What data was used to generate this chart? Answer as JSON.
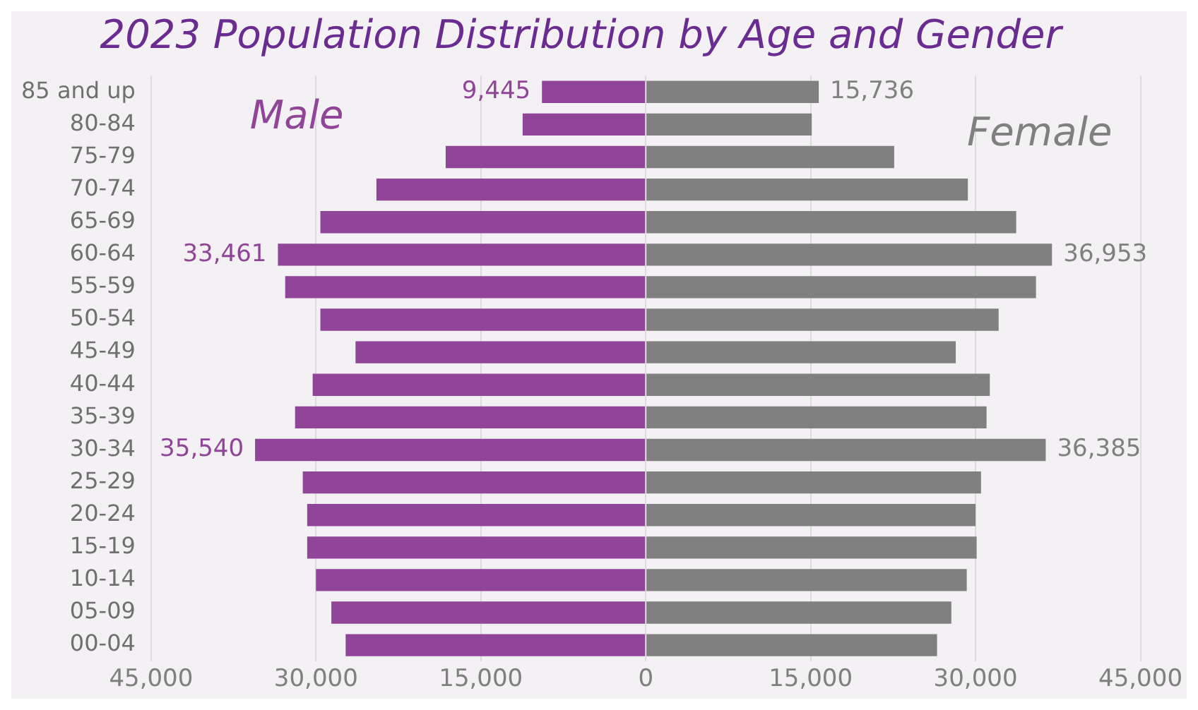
{
  "chart_data": {
    "type": "bar",
    "orientation": "horizontal",
    "title": "2023 Population Distribution by Age and Gender",
    "categories": [
      "85 and up",
      "80-84",
      "75-79",
      "70-74",
      "65-69",
      "60-64",
      "55-59",
      "50-54",
      "45-49",
      "40-44",
      "35-39",
      "30-34",
      "25-29",
      "20-24",
      "15-19",
      "10-14",
      "05-09",
      "00-04"
    ],
    "series": [
      {
        "name": "Male",
        "color": "#914599",
        "values": [
          9445,
          11200,
          18200,
          24500,
          29600,
          33461,
          32800,
          29600,
          26400,
          30300,
          31900,
          35540,
          31200,
          30800,
          30800,
          30000,
          28600,
          27300
        ],
        "base": [
          -9445,
          -11200,
          -18200,
          -24500,
          -29600,
          -33461,
          -32800,
          -29600,
          -26400,
          -30300,
          -31900,
          -35540,
          -31200,
          -30800,
          -30800,
          -30000,
          -28600,
          -27300
        ],
        "value_labels": [
          "9,445",
          null,
          null,
          null,
          null,
          "33,461",
          null,
          null,
          null,
          null,
          null,
          "35,540",
          null,
          null,
          null,
          null,
          null,
          null
        ]
      },
      {
        "name": "Female",
        "color": "#808080",
        "values": [
          15736,
          15100,
          22600,
          29300,
          33700,
          36953,
          35500,
          32100,
          28200,
          31300,
          31000,
          36385,
          30500,
          30000,
          30100,
          29200,
          27800,
          26500
        ],
        "value_labels": [
          "15,736",
          null,
          null,
          null,
          null,
          "36,953",
          null,
          null,
          null,
          null,
          null,
          "36,385",
          null,
          null,
          null,
          null,
          null,
          null
        ]
      }
    ],
    "xlim": [
      -45000,
      45000
    ],
    "xticks": [
      {
        "value": -45000,
        "label": "45,000"
      },
      {
        "value": -30000,
        "label": "30,000"
      },
      {
        "value": -15000,
        "label": "15,000"
      },
      0,
      {
        "value": 15000,
        "label": "15,000"
      },
      {
        "value": 30000,
        "label": "30,000"
      },
      {
        "value": 45000,
        "label": "45,000"
      }
    ],
    "grid": "x",
    "legend": false
  }
}
